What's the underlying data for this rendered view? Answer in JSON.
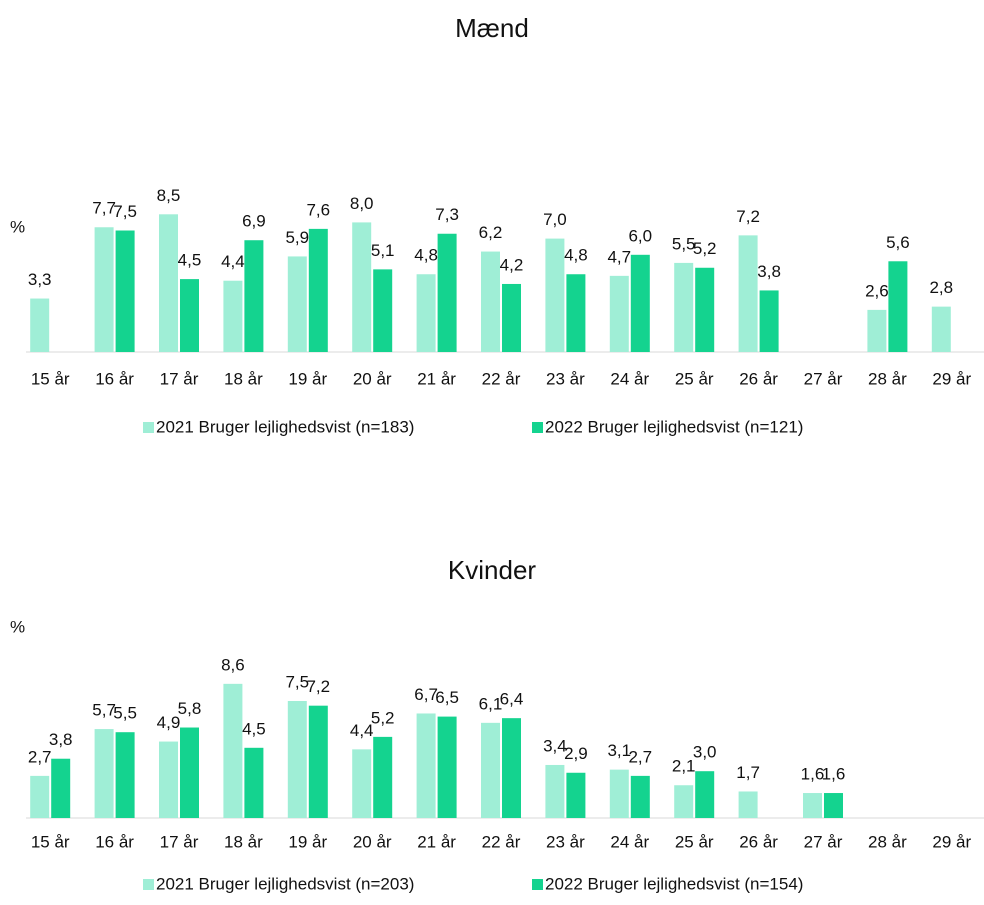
{
  "chart_data": [
    {
      "type": "bar",
      "title": "Mænd",
      "ylabel": "%",
      "categories": [
        "15 år",
        "16 år",
        "17 år",
        "18 år",
        "19 år",
        "20 år",
        "21 år",
        "22 år",
        "23 år",
        "24 år",
        "25 år",
        "26 år",
        "27 år",
        "28 år",
        "29 år"
      ],
      "ylim": [
        0,
        10
      ],
      "series": [
        {
          "name": "2021 Bruger lejlighedsvist (n=183)",
          "color": "#9feed6",
          "values": [
            3.3,
            7.7,
            8.5,
            4.4,
            5.9,
            8.0,
            4.8,
            6.2,
            7.0,
            4.7,
            5.5,
            7.2,
            null,
            2.6,
            2.8
          ],
          "value_labels": [
            "3,3",
            "7,7",
            "8,5",
            "4,4",
            "5,9",
            "8,0",
            "4,8",
            "6,2",
            "7,0",
            "4,7",
            "5,5",
            "7,2",
            null,
            "2,6",
            "2,8"
          ]
        },
        {
          "name": "2022 Bruger lejlighedsvist (n=121)",
          "color": "#14d38f",
          "values": [
            null,
            7.5,
            4.5,
            6.9,
            7.6,
            5.1,
            7.3,
            4.2,
            4.8,
            6.0,
            5.2,
            3.8,
            null,
            5.6,
            null
          ],
          "value_labels": [
            null,
            "7,5",
            "4,5",
            "6,9",
            "7,6",
            "5,1",
            "7,3",
            "4,2",
            "4,8",
            "6,0",
            "5,2",
            "3,8",
            null,
            "5,6",
            null
          ]
        }
      ]
    },
    {
      "type": "bar",
      "title": "Kvinder",
      "ylabel": "%",
      "categories": [
        "15 år",
        "16 år",
        "17 år",
        "18 år",
        "19 år",
        "20 år",
        "21 år",
        "22 år",
        "23 år",
        "24 år",
        "25 år",
        "26 år",
        "27 år",
        "28 år",
        "29 år"
      ],
      "ylim": [
        0,
        10
      ],
      "series": [
        {
          "name": "2021 Bruger lejlighedsvist (n=203)",
          "color": "#9feed6",
          "values": [
            2.7,
            5.7,
            4.9,
            8.6,
            7.5,
            4.4,
            6.7,
            6.1,
            3.4,
            3.1,
            2.1,
            1.7,
            1.6,
            null,
            null
          ],
          "value_labels": [
            "2,7",
            "5,7",
            "4,9",
            "8,6",
            "7,5",
            "4,4",
            "6,7",
            "6,1",
            "3,4",
            "3,1",
            "2,1",
            "1,7",
            "1,6",
            null,
            null
          ]
        },
        {
          "name": "2022 Bruger lejlighedsvist (n=154)",
          "color": "#14d38f",
          "values": [
            3.8,
            5.5,
            5.8,
            4.5,
            7.2,
            5.2,
            6.5,
            6.4,
            2.9,
            2.7,
            3.0,
            null,
            1.6,
            null,
            null
          ],
          "value_labels": [
            "3,8",
            "5,5",
            "5,8",
            "4,5",
            "7,2",
            "5,2",
            "6,5",
            "6,4",
            "2,9",
            "2,7",
            "3,0",
            null,
            "1,6",
            null,
            null
          ]
        }
      ]
    }
  ]
}
